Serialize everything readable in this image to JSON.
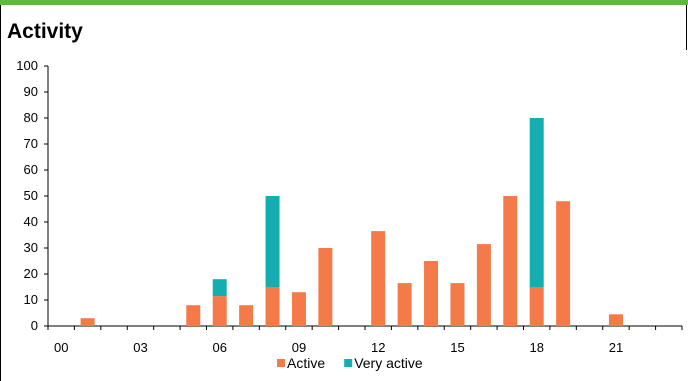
{
  "header": {
    "title": "Activity"
  },
  "colors": {
    "accent_bar": "#5fb846",
    "active": "#f47a4a",
    "very_active": "#14aeb0"
  },
  "chart_data": {
    "type": "bar",
    "stacked": true,
    "title": "Activity",
    "xlabel": "",
    "ylabel": "",
    "ylim": [
      0,
      100
    ],
    "y_ticks": [
      "0",
      "10",
      "20",
      "30",
      "40",
      "50",
      "60",
      "70",
      "80",
      "90",
      "100"
    ],
    "x_tick_labels": [
      "00",
      "03",
      "06",
      "09",
      "12",
      "15",
      "18",
      "21"
    ],
    "categories": [
      "00",
      "01",
      "02",
      "03",
      "04",
      "05",
      "06",
      "07",
      "08",
      "09",
      "10",
      "11",
      "12",
      "13",
      "14",
      "15",
      "16",
      "17",
      "18",
      "19",
      "20",
      "21",
      "22",
      "23"
    ],
    "series": [
      {
        "name": "Active",
        "color": "#f47a4a",
        "values": [
          0,
          3,
          0,
          0,
          0,
          8,
          11.5,
          8,
          15,
          13,
          30,
          0,
          36.5,
          16.5,
          25,
          16.5,
          31.5,
          50,
          15,
          48,
          0,
          4.5,
          0,
          0
        ]
      },
      {
        "name": "Very active",
        "color": "#14aeb0",
        "values": [
          0,
          0,
          0,
          0,
          0,
          0,
          6.5,
          0,
          35,
          0,
          0,
          0,
          0,
          0,
          0,
          0,
          0,
          0,
          65,
          0,
          0,
          0,
          0,
          0
        ]
      }
    ],
    "legend": {
      "position": "bottom",
      "entries": [
        "Active",
        "Very active"
      ]
    },
    "grid": false
  }
}
